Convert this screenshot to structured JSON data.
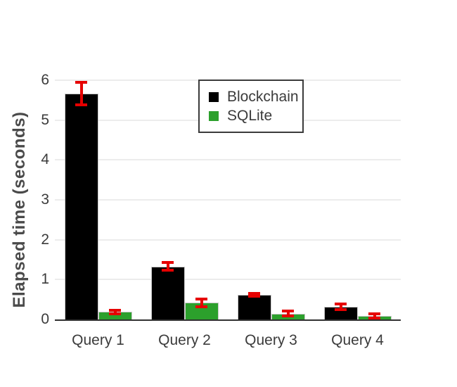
{
  "chart_data": {
    "type": "bar",
    "title": "",
    "xlabel": "",
    "ylabel": "Elapsed time (seconds)",
    "categories": [
      "Query 1",
      "Query 2",
      "Query 3",
      "Query 4"
    ],
    "series": [
      {
        "name": "Blockchain",
        "color": "#000000",
        "values": [
          5.67,
          1.33,
          0.62,
          0.31
        ],
        "errors": [
          0.28,
          0.1,
          0.04,
          0.07
        ]
      },
      {
        "name": "SQLite",
        "color": "#2ca02c",
        "values": [
          0.19,
          0.42,
          0.15,
          0.09
        ],
        "errors": [
          0.04,
          0.1,
          0.06,
          0.05
        ]
      }
    ],
    "error_bar_color": "#e60000",
    "ylim": [
      0,
      6
    ],
    "yticks": [
      0,
      1,
      2,
      3,
      4,
      5,
      6
    ],
    "grid": true,
    "legend": {
      "position": "top-center-inside",
      "entries": [
        "Blockchain",
        "SQLite"
      ]
    }
  }
}
